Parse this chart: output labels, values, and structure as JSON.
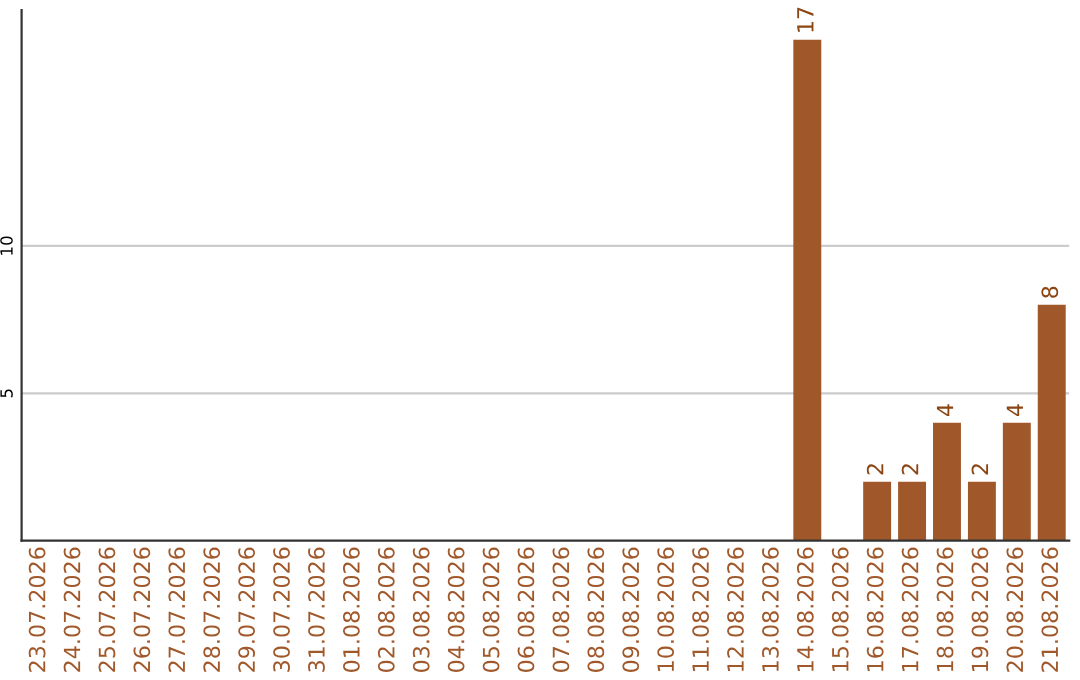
{
  "chart_data": {
    "type": "bar",
    "categories": [
      "23.07.2026",
      "24.07.2026",
      "25.07.2026",
      "26.07.2026",
      "27.07.2026",
      "28.07.2026",
      "29.07.2026",
      "30.07.2026",
      "31.07.2026",
      "01.08.2026",
      "02.08.2026",
      "03.08.2026",
      "04.08.2026",
      "05.08.2026",
      "06.08.2026",
      "07.08.2026",
      "08.08.2026",
      "09.08.2026",
      "10.08.2026",
      "11.08.2026",
      "12.08.2026",
      "13.08.2026",
      "14.08.2026",
      "15.08.2026",
      "16.08.2026",
      "17.08.2026",
      "18.08.2026",
      "19.08.2026",
      "20.08.2026",
      "21.08.2026"
    ],
    "values": [
      0,
      0,
      0,
      0,
      0,
      0,
      0,
      0,
      0,
      0,
      0,
      0,
      0,
      0,
      0,
      0,
      0,
      0,
      0,
      0,
      0,
      0,
      17,
      0,
      2,
      2,
      4,
      2,
      4,
      8
    ],
    "value_labels": [
      null,
      null,
      null,
      null,
      null,
      null,
      null,
      null,
      null,
      null,
      null,
      null,
      null,
      null,
      null,
      null,
      null,
      null,
      null,
      null,
      null,
      null,
      "17",
      null,
      "2",
      "2",
      "4",
      "2",
      "4",
      "8"
    ],
    "color": "#a0582a",
    "ylim": [
      0,
      18
    ],
    "yticks": [
      5,
      10
    ],
    "grid": "y"
  }
}
